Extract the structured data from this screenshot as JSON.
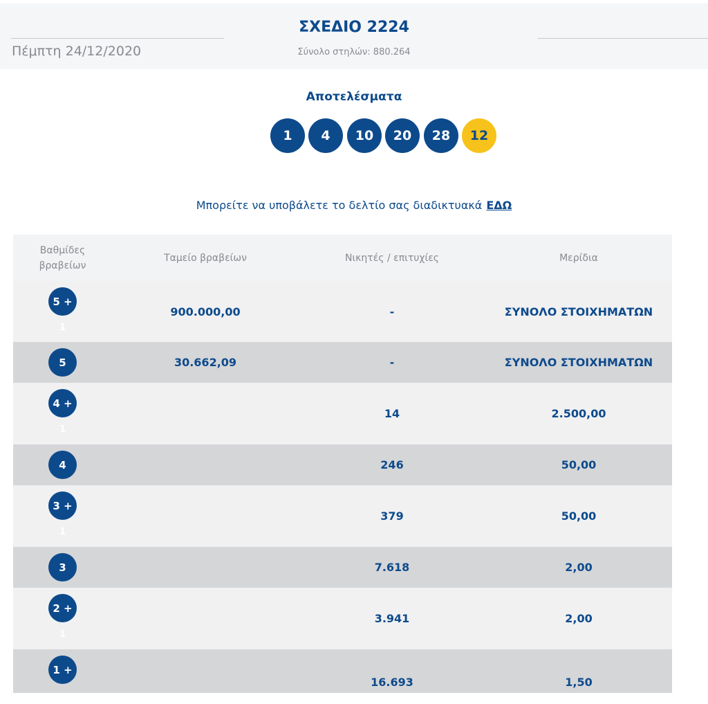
{
  "header": {
    "date": "Πέμπτη 24/12/2020",
    "draw_title": "ΣΧΕΔΙΟ 2224",
    "columns_total": "Σύνολο στηλών: 880.264"
  },
  "results": {
    "title": "Αποτελέσματα",
    "numbers": [
      "1",
      "4",
      "10",
      "20",
      "28"
    ],
    "bonus": "12"
  },
  "submit": {
    "text": "Μπορείτε να υποβάλετε το δελτίο σας διαδικτυακά",
    "link": "ΕΔΩ"
  },
  "table": {
    "headers": {
      "tier": [
        "Βαθμίδες",
        "βραβείων"
      ],
      "fund": "Ταμείο βραβείων",
      "winners": "Νικητές / επιτυχίες",
      "payout": "Μερίδια"
    },
    "rows": [
      {
        "tier": "5 +",
        "sub": "1",
        "fund": "900.000,00",
        "winners": "-",
        "payout": "ΣΥΝΟΛΟ ΣΤΟΙΧΗΜΑΤΩΝ"
      },
      {
        "tier": "5",
        "sub": "",
        "fund": "30.662,09",
        "winners": "-",
        "payout": "ΣΥΝΟΛΟ ΣΤΟΙΧΗΜΑΤΩΝ"
      },
      {
        "tier": "4 +",
        "sub": "1",
        "fund": "",
        "winners": "14",
        "payout": "2.500,00"
      },
      {
        "tier": "4",
        "sub": "",
        "fund": "",
        "winners": "246",
        "payout": "50,00"
      },
      {
        "tier": "3 +",
        "sub": "1",
        "fund": "",
        "winners": "379",
        "payout": "50,00"
      },
      {
        "tier": "3",
        "sub": "",
        "fund": "",
        "winners": "7.618",
        "payout": "2,00"
      },
      {
        "tier": "2 +",
        "sub": "1",
        "fund": "",
        "winners": "3.941",
        "payout": "2,00"
      },
      {
        "tier": "1 +",
        "sub": "",
        "fund": "",
        "winners": "16.693",
        "payout": "1,50"
      }
    ]
  },
  "colors": {
    "brand_blue": "#0d4a8c",
    "bonus_yellow": "#f7c21b",
    "row_light": "#f1f1f2",
    "row_dark": "#d5d6d8"
  }
}
